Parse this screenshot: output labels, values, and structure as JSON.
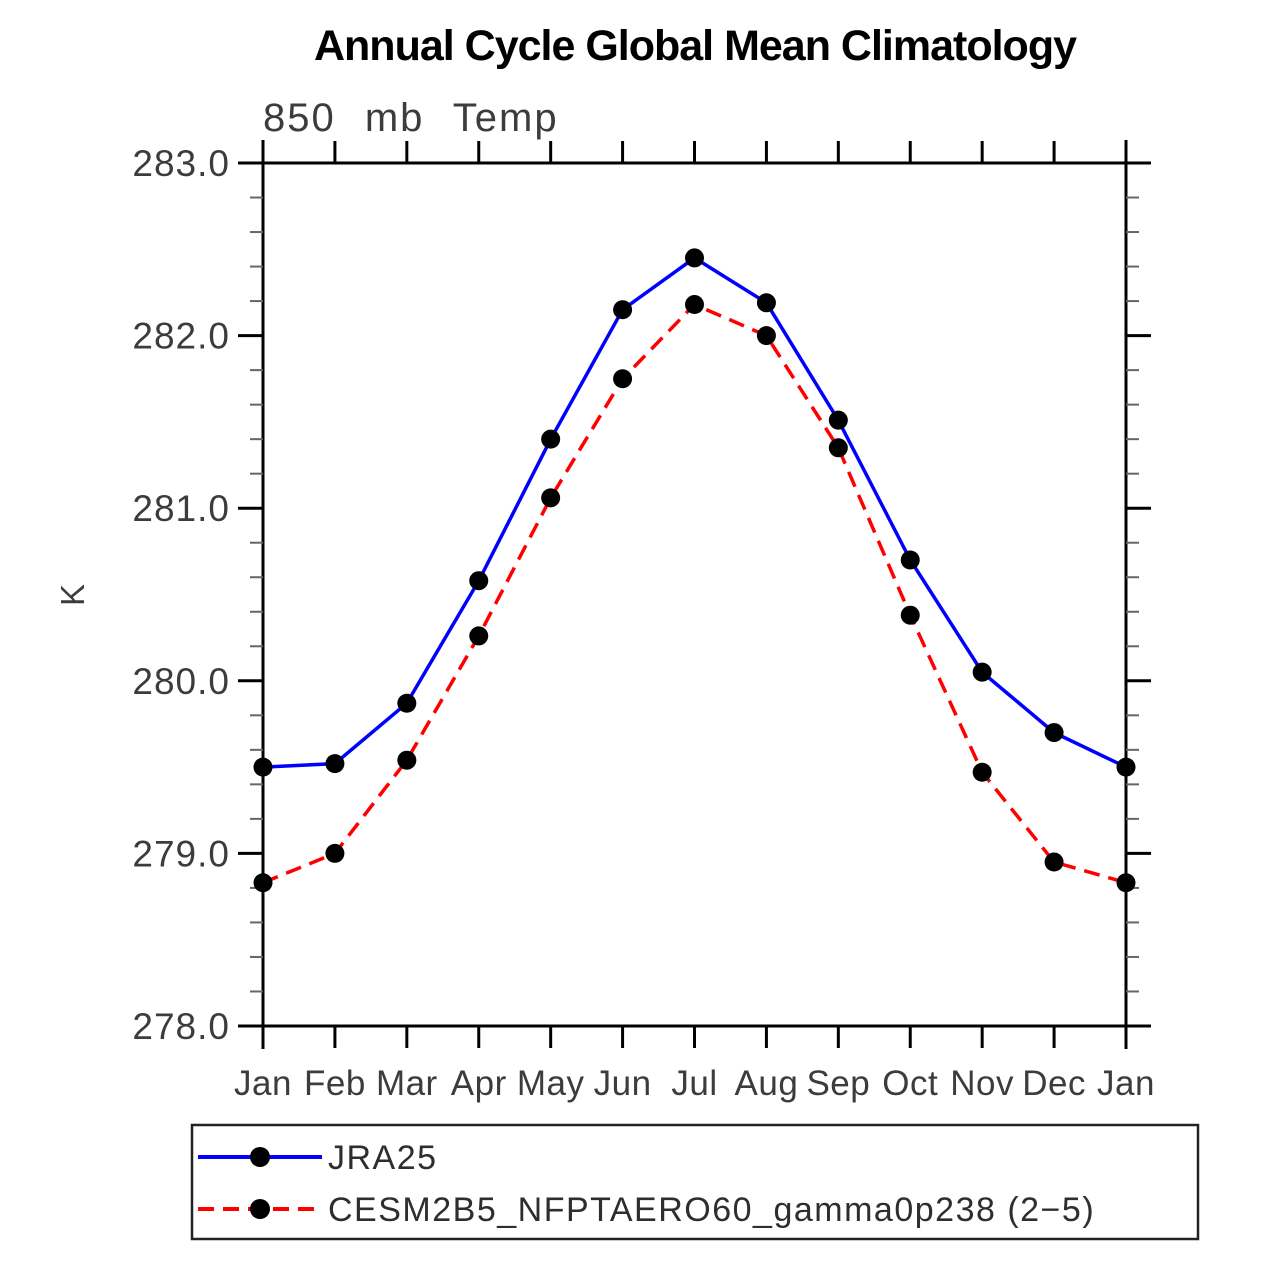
{
  "title": "Annual Cycle Global Mean Climatology",
  "chart_data": {
    "type": "line",
    "title": "Annual Cycle Global Mean Climatology",
    "subtitle": "850 mb Temp",
    "ylabel": "K",
    "categories": [
      "Jan",
      "Feb",
      "Mar",
      "Apr",
      "May",
      "Jun",
      "Jul",
      "Aug",
      "Sep",
      "Oct",
      "Nov",
      "Dec",
      "Jan"
    ],
    "ylim": [
      278.0,
      283.0
    ],
    "y_major_step": 1.0,
    "y_minor_step": 0.2,
    "y_major_tick_labels": [
      "283.0",
      "282.0",
      "281.0",
      "280.0",
      "279.0",
      "278.0"
    ],
    "grid": false,
    "legend_position": "bottom-left",
    "axis_color": "#000000",
    "minor_tick_color": "#666666",
    "tick_label_color": "#3c3c3c",
    "series": [
      {
        "name": "JRA25",
        "line_color": "#0000ff",
        "line_style": "solid",
        "marker": "circle",
        "marker_color": "#000000",
        "values": [
          279.5,
          279.52,
          279.87,
          280.58,
          281.4,
          282.15,
          282.45,
          282.19,
          281.51,
          280.7,
          280.05,
          279.7,
          279.5
        ]
      },
      {
        "name": "CESM2B5_NFPTAERO60_gamma0p238 (2−5)",
        "line_color": "#ff0000",
        "line_style": "dashed",
        "marker": "circle",
        "marker_color": "#000000",
        "values": [
          278.83,
          279.0,
          279.54,
          280.26,
          281.06,
          281.75,
          282.18,
          282.0,
          281.35,
          280.38,
          279.47,
          278.95,
          278.83
        ]
      }
    ]
  }
}
